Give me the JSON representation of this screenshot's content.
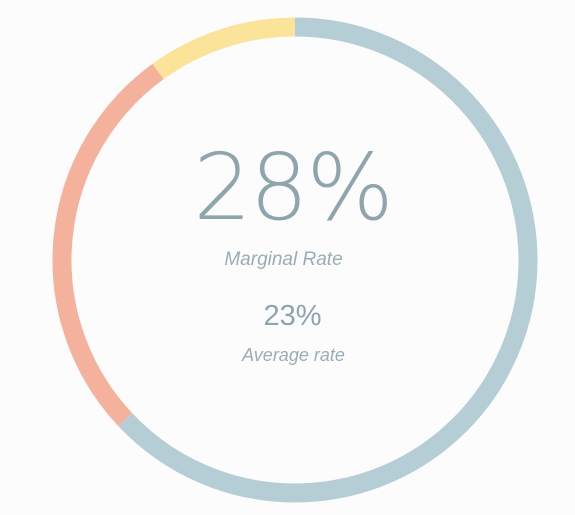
{
  "chart_data": {
    "type": "pie",
    "slices": [
      {
        "value": 63,
        "color": "#b5cdd4"
      },
      {
        "value": 27,
        "color": "#f4b19b"
      },
      {
        "value": 10,
        "color": "#fbe39a"
      }
    ],
    "marginal_rate": "28%",
    "marginal_rate_label": "Marginal Rate",
    "average_rate": "23%",
    "average_rate_label": "Average rate"
  },
  "colors": {
    "background": "#fcfcfc",
    "text": "#8fa5ad"
  }
}
